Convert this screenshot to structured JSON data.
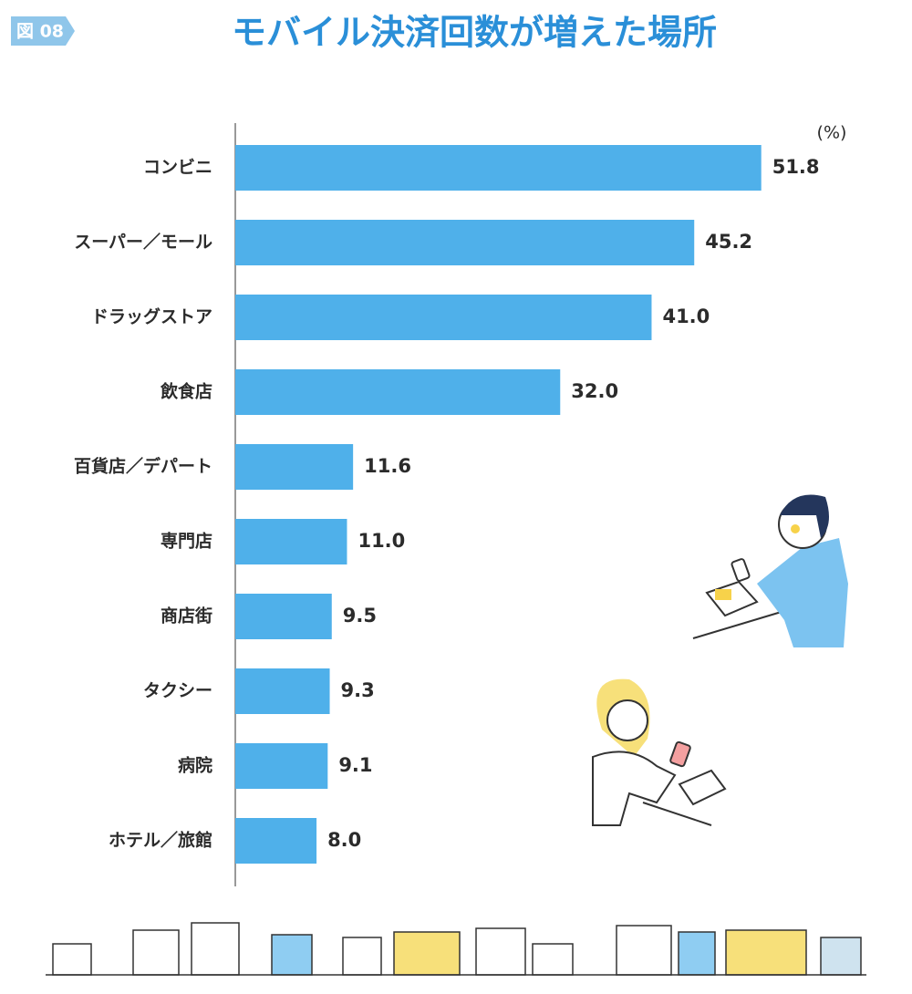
{
  "chart_data": {
    "type": "bar",
    "orientation": "horizontal",
    "badge": "図 08",
    "title": "モバイル決済回数が増えた場所",
    "unit": "(%)",
    "categories": [
      "コンビニ",
      "スーパー／モール",
      "ドラッグストア",
      "飲食店",
      "百貨店／デパート",
      "専門店",
      "商店街",
      "タクシー",
      "病院",
      "ホテル／旅館"
    ],
    "values": [
      51.8,
      45.2,
      41.0,
      32.0,
      11.6,
      11.0,
      9.5,
      9.3,
      9.1,
      8.0
    ],
    "value_labels": [
      "51.8",
      "45.2",
      "41.0",
      "32.0",
      "11.6",
      "11.0",
      "9.5",
      "9.3",
      "9.1",
      "8.0"
    ],
    "color": "#4fb0ea",
    "xlim": [
      0,
      60
    ]
  }
}
